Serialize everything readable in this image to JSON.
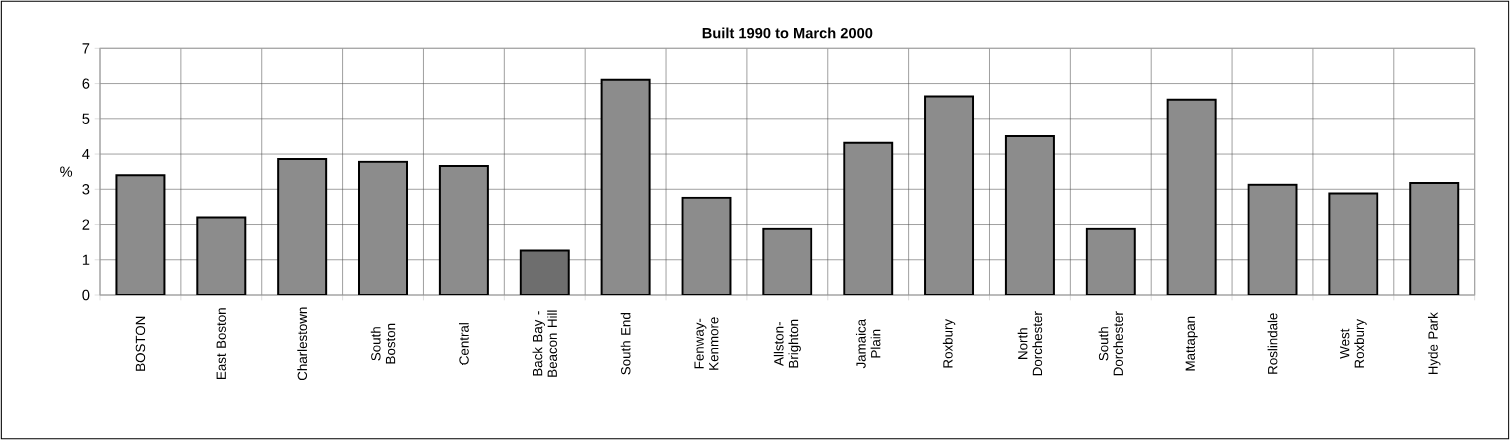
{
  "chart_data": {
    "type": "bar",
    "title": "Built 1990 to March 2000",
    "ylabel": "%",
    "categories": [
      "BOSTON",
      "East Boston",
      "Charlestown",
      "South Boston",
      "Central",
      "Back Bay - Beacon Hill",
      "South End",
      "Fenway-Kenmore",
      "Allston-Brighton",
      "Jamaica Plain",
      "Roxbury",
      "North Dorchester",
      "South Dorchester",
      "Mattapan",
      "Roslindale",
      "West Roxbury",
      "Hyde Park"
    ],
    "values": [
      3.4,
      2.2,
      3.86,
      3.78,
      3.66,
      1.26,
      6.11,
      2.76,
      1.88,
      4.32,
      5.63,
      4.51,
      1.88,
      5.54,
      3.13,
      2.88,
      3.18
    ],
    "colors": [
      "#8c8c8c",
      "#8c8c8c",
      "#8c8c8c",
      "#8c8c8c",
      "#8c8c8c",
      "#6e6e6e",
      "#8c8c8c",
      "#8c8c8c",
      "#8c8c8c",
      "#8c8c8c",
      "#8c8c8c",
      "#8c8c8c",
      "#8c8c8c",
      "#8c8c8c",
      "#8c8c8c",
      "#8c8c8c",
      "#8c8c8c"
    ],
    "ylim": [
      0,
      7
    ],
    "yticks": [
      0,
      1,
      2,
      3,
      4,
      5,
      6,
      7
    ],
    "grid": true
  }
}
